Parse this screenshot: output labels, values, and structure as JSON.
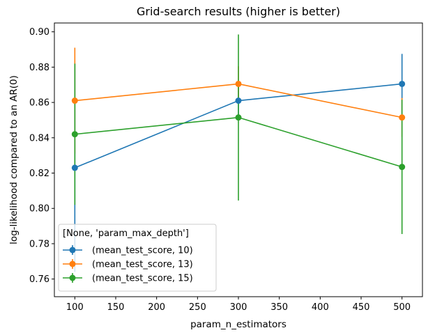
{
  "chart_data": {
    "type": "line",
    "title": "Grid-search results (higher is better)",
    "xlabel": "param_n_estimators",
    "ylabel": "log-likelihood compared to an AR(0)",
    "x": [
      100,
      300,
      500
    ],
    "xlim": [
      75,
      525
    ],
    "ylim": [
      0.75,
      0.905
    ],
    "xticks": [
      100,
      150,
      200,
      250,
      300,
      350,
      400,
      450,
      500
    ],
    "yticks": [
      0.76,
      0.78,
      0.8,
      0.82,
      0.84,
      0.86,
      0.88,
      0.9
    ],
    "ytick_labels": [
      "0.76",
      "0.78",
      "0.80",
      "0.82",
      "0.84",
      "0.86",
      "0.88",
      "0.90"
    ],
    "grid": false,
    "legend": {
      "title": "[None, 'param_max_depth']",
      "placement": "lower-left"
    },
    "series": [
      {
        "name": "(mean_test_score, 10)",
        "color": "#1f77b4",
        "values": [
          0.823,
          0.861,
          0.8705
        ],
        "error": [
          0.059,
          0.01,
          0.017
        ]
      },
      {
        "name": "(mean_test_score, 13)",
        "color": "#ff7f0e",
        "values": [
          0.861,
          0.8705,
          0.8515
        ],
        "error": [
          0.03,
          0.01,
          0.011
        ]
      },
      {
        "name": "(mean_test_score, 15)",
        "color": "#2ca02c",
        "values": [
          0.842,
          0.8515,
          0.8235
        ],
        "error": [
          0.04,
          0.047,
          0.038
        ]
      }
    ]
  }
}
